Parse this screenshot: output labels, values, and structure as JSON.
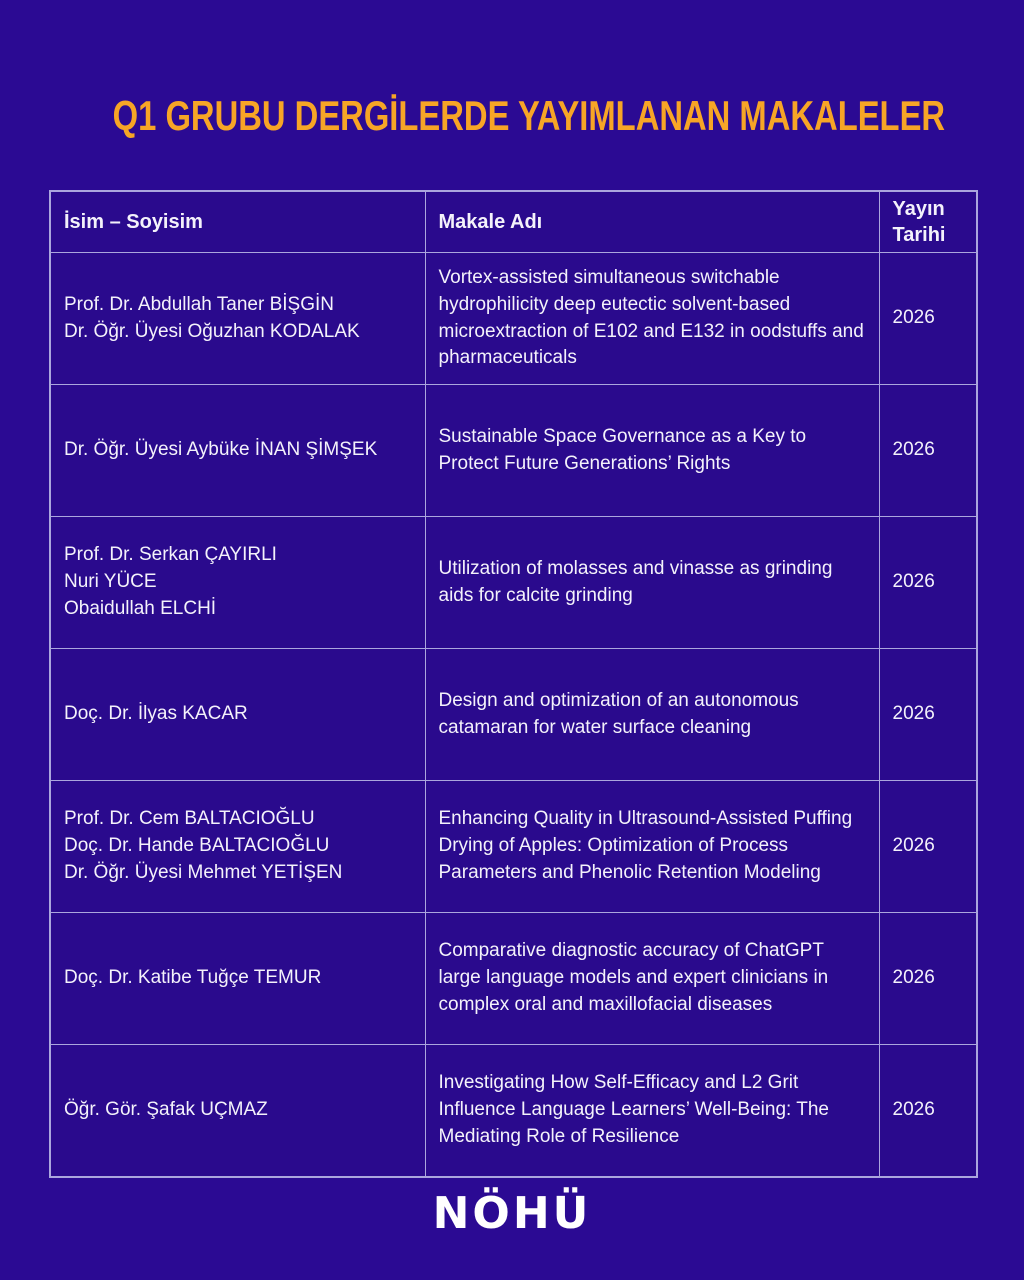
{
  "page": {
    "title": "Q1 GRUBU DERGİLERDE YAYIMLANAN MAKALELER",
    "logo_text": "NÖHÜ"
  },
  "colors": {
    "background": "#2b0a93",
    "table_border": "#aba6de",
    "title_accent": "#f7a526",
    "body_text": "#f4f2fb",
    "logo_text": "#ffffff"
  },
  "table": {
    "headers": [
      "İsim – Soyisim",
      "Makale Adı",
      "Yayın Tarihi"
    ],
    "rows": [
      {
        "names": [
          "Prof. Dr. Abdullah Taner BİŞGİN",
          "Dr. Öğr. Üyesi Oğuzhan KODALAK"
        ],
        "article": "Vortex-assisted simultaneous switchable hydrophilicity deep eutectic solvent-based microextraction of E102 and E132 in oodstuffs and pharmaceuticals",
        "year": "2026"
      },
      {
        "names": [
          "Dr. Öğr. Üyesi Aybüke İNAN ŞİMŞEK"
        ],
        "article": "Sustainable Space Governance as a Key to Protect Future Generations’ Rights",
        "year": "2026"
      },
      {
        "names": [
          "Prof. Dr. Serkan ÇAYIRLI",
          "Nuri YÜCE",
          "Obaidullah ELCHİ"
        ],
        "article": "Utilization of molasses and vinasse as grinding aids for calcite grinding",
        "year": "2026"
      },
      {
        "names": [
          "Doç. Dr. İlyas KACAR"
        ],
        "article": "Design and optimization of an autonomous catamaran for water surface cleaning",
        "year": "2026"
      },
      {
        "names": [
          "Prof. Dr. Cem BALTACIOĞLU",
          "Doç. Dr. Hande BALTACIOĞLU",
          "Dr. Öğr. Üyesi Mehmet YETİŞEN"
        ],
        "article": "Enhancing Quality in Ultrasound-Assisted Puffing Drying of Apples: Optimization of Process Parameters and Phenolic Retention Modeling",
        "year": "2026"
      },
      {
        "names": [
          "Doç. Dr. Katibe Tuğçe TEMUR"
        ],
        "article": "Comparative diagnostic accuracy of ChatGPT large language models and expert clinicians in complex oral and maxillofacial diseases",
        "year": "2026"
      },
      {
        "names": [
          "Öğr. Gör. Şafak UÇMAZ"
        ],
        "article": "Investigating How Self-Efficacy and L2 Grit Influence Language Learners’ Well-Being: The Mediating Role of Resilience",
        "year": "2026"
      }
    ]
  }
}
